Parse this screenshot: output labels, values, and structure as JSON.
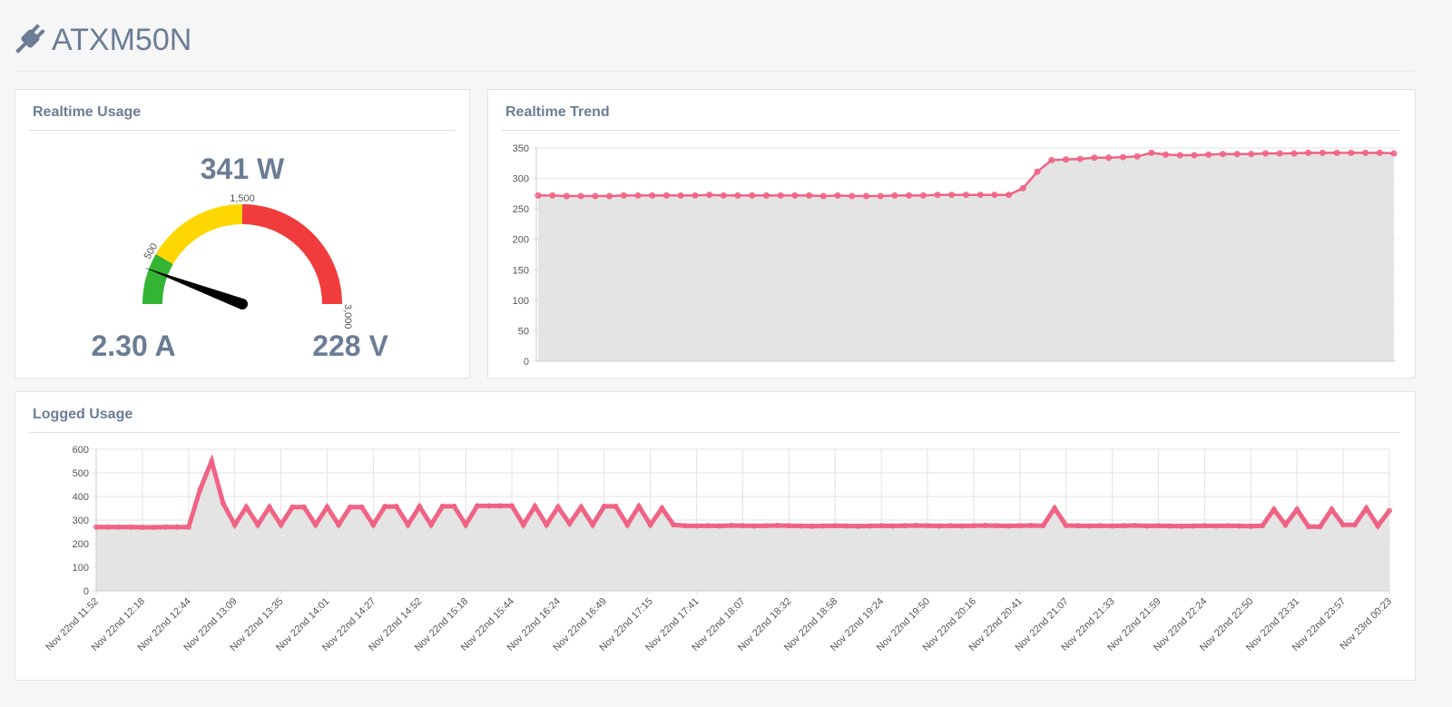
{
  "header": {
    "title": "ATXM50N"
  },
  "chart_data": [
    {
      "type": "gauge",
      "title": "Realtime Usage",
      "value": 341,
      "value_label": "341 W",
      "min": 0,
      "max": 3000,
      "ticks": [
        500,
        {
          "value": 1500,
          "label": "1,500"
        },
        {
          "value": 3000,
          "label": "3,000"
        }
      ],
      "band_colors": [
        "#33b533",
        "#ffd700",
        "#f03c3c"
      ],
      "needle_color": "#000000",
      "annotations": [
        "2.30 A",
        "228 V"
      ]
    },
    {
      "type": "area",
      "title": "Realtime Trend",
      "values": [
        272,
        272,
        271,
        271,
        271,
        271,
        272,
        272,
        272,
        272,
        272,
        272,
        273,
        272,
        272,
        272,
        272,
        272,
        272,
        272,
        271,
        272,
        271,
        271,
        271,
        272,
        272,
        272,
        273,
        273,
        273,
        273,
        273,
        273,
        284,
        311,
        330,
        331,
        332,
        334,
        334,
        335,
        336,
        342,
        339,
        338,
        338,
        339,
        340,
        340,
        340,
        341,
        341,
        341,
        342,
        342,
        342,
        342,
        342,
        342,
        341
      ],
      "ylim": [
        0,
        350
      ],
      "yticks": [
        0,
        50,
        100,
        150,
        200,
        250,
        300,
        350
      ],
      "color": "#f06384",
      "fill": "#e4e4e4",
      "grid": true
    },
    {
      "type": "area",
      "title": "Logged Usage",
      "categories": [
        "Nov 22nd 11:52",
        null,
        null,
        null,
        "Nov 22nd 12:18",
        null,
        null,
        null,
        "Nov 22nd 12:44",
        null,
        null,
        null,
        "Nov 22nd 13:09",
        null,
        null,
        null,
        "Nov 22nd 13:35",
        null,
        null,
        null,
        "Nov 22nd 14:01",
        null,
        null,
        null,
        "Nov 22nd 14:27",
        null,
        null,
        null,
        "Nov 22nd 14:52",
        null,
        null,
        null,
        "Nov 22nd 15:18",
        null,
        null,
        null,
        "Nov 22nd 15:44",
        null,
        null,
        null,
        "Nov 22nd 16:24",
        null,
        null,
        null,
        "Nov 22nd 16:49",
        null,
        null,
        null,
        "Nov 22nd 17:15",
        null,
        null,
        null,
        "Nov 22nd 17:41",
        null,
        null,
        null,
        "Nov 22nd 18:07",
        null,
        null,
        null,
        "Nov 22nd 18:32",
        null,
        null,
        null,
        "Nov 22nd 18:58",
        null,
        null,
        null,
        "Nov 22nd 19:24",
        null,
        null,
        null,
        "Nov 22nd 19:50",
        null,
        null,
        null,
        "Nov 22nd 20:16",
        null,
        null,
        null,
        "Nov 22nd 20:41",
        null,
        null,
        null,
        "Nov 22nd 21:07",
        null,
        null,
        null,
        "Nov 22nd 21:33",
        null,
        null,
        null,
        "Nov 22nd 21:59",
        null,
        null,
        null,
        "Nov 22nd 22:24",
        null,
        null,
        null,
        "Nov 22nd 22:50",
        null,
        null,
        null,
        "Nov 22nd 23:31",
        null,
        null,
        null,
        "Nov 22nd 23:57",
        null,
        null,
        null,
        "Nov 23rd 00:23"
      ],
      "values": [
        270,
        270,
        270,
        270,
        269,
        269,
        270,
        270,
        270,
        430,
        550,
        370,
        280,
        355,
        280,
        355,
        280,
        355,
        355,
        280,
        355,
        280,
        355,
        355,
        280,
        357,
        357,
        280,
        357,
        280,
        358,
        358,
        280,
        360,
        360,
        360,
        360,
        280,
        358,
        280,
        355,
        285,
        355,
        280,
        358,
        358,
        280,
        358,
        280,
        350,
        280,
        276,
        275,
        276,
        275,
        277,
        276,
        275,
        276,
        277,
        276,
        275,
        274,
        275,
        276,
        275,
        274,
        275,
        276,
        275,
        276,
        277,
        276,
        275,
        276,
        275,
        276,
        277,
        276,
        275,
        276,
        277,
        276,
        350,
        277,
        276,
        275,
        276,
        275,
        276,
        277,
        275,
        276,
        275,
        274,
        275,
        276,
        275,
        276,
        275,
        274,
        276,
        345,
        280,
        345,
        272,
        272,
        345,
        280,
        280,
        350,
        275,
        340
      ],
      "ylim": [
        0,
        600
      ],
      "yticks": [
        0,
        100,
        200,
        300,
        400,
        500,
        600
      ],
      "color": "#f06384",
      "fill": "#e4e4e4",
      "grid": true
    }
  ]
}
